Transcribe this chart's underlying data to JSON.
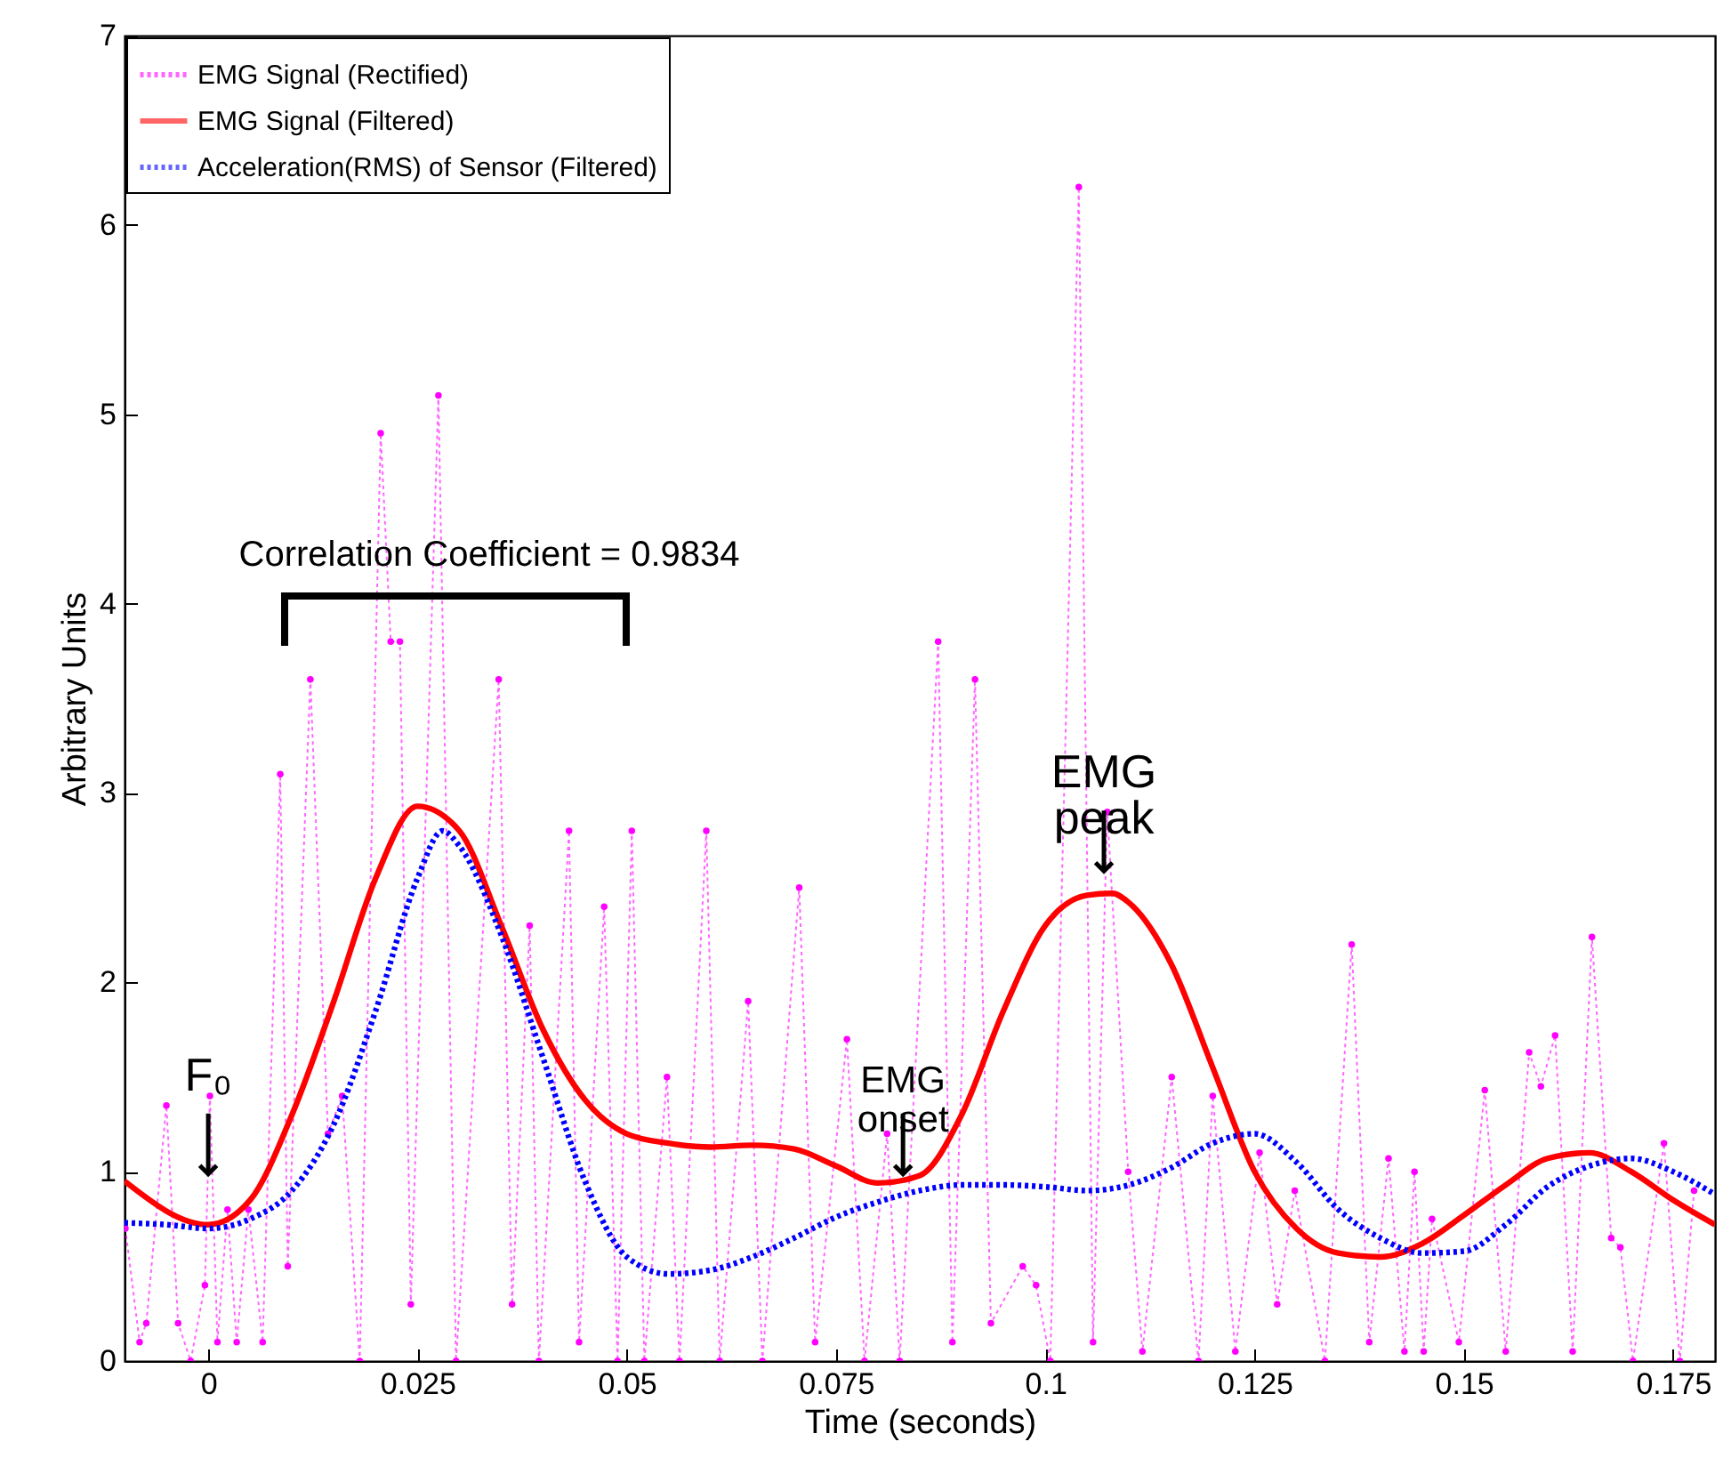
{
  "chart_data": {
    "type": "line",
    "xlabel": "Time (seconds)",
    "ylabel": "Arbitrary Units",
    "xlim": [
      -0.01,
      0.18
    ],
    "xticks": [
      0,
      0.025,
      0.05,
      0.075,
      0.1,
      0.125,
      0.15,
      0.175
    ],
    "ylim": [
      0,
      7
    ],
    "yticks": [
      0,
      1,
      2,
      3,
      4,
      5,
      6,
      7
    ],
    "grid": false,
    "legend": "top left",
    "series": [
      {
        "name": "EMG Signal (Rectified)",
        "color": "#ff00ff",
        "line_style": "dotted",
        "marker": "circle",
        "x": [
          -0.0099,
          -0.0082,
          -0.0074,
          -0.005,
          -0.0036,
          -0.0021,
          -0.0004,
          0.0002,
          0.0011,
          0.0023,
          0.0034,
          0.0048,
          0.0065,
          0.0086,
          0.0095,
          0.0122,
          0.0143,
          0.016,
          0.0181,
          0.0206,
          0.0218,
          0.0229,
          0.0242,
          0.0275,
          0.0296,
          0.0347,
          0.0363,
          0.0384,
          0.0395,
          0.0431,
          0.0443,
          0.0473,
          0.0489,
          0.0506,
          0.0521,
          0.0548,
          0.0563,
          0.0595,
          0.0611,
          0.0645,
          0.0662,
          0.0706,
          0.0725,
          0.0763,
          0.0784,
          0.0811,
          0.0826,
          0.0872,
          0.0889,
          0.0916,
          0.0935,
          0.0973,
          0.0989,
          0.1006,
          0.104,
          0.1057,
          0.1074,
          0.1099,
          0.1116,
          0.1151,
          0.1183,
          0.12,
          0.1227,
          0.1256,
          0.1277,
          0.1298,
          0.1334,
          0.1366,
          0.1387,
          0.141,
          0.1429,
          0.1441,
          0.1452,
          0.1462,
          0.1494,
          0.1525,
          0.155,
          0.1578,
          0.1592,
          0.1609,
          0.163,
          0.1653,
          0.1676,
          0.1687,
          0.1702,
          0.1739,
          0.1758,
          0.1775
        ],
        "values": [
          0.7,
          0.1,
          0.2,
          1.35,
          0.2,
          0.0,
          0.4,
          1.4,
          0.1,
          0.8,
          0.1,
          0.8,
          0.1,
          3.1,
          0.5,
          3.6,
          1.2,
          1.4,
          0.0,
          4.9,
          3.8,
          3.8,
          0.3,
          5.1,
          0.0,
          3.6,
          0.3,
          2.3,
          0.0,
          2.8,
          0.1,
          2.4,
          0.0,
          2.8,
          0.0,
          1.5,
          0.0,
          2.8,
          0.0,
          1.9,
          0.0,
          2.5,
          0.1,
          1.7,
          0.0,
          1.2,
          0.0,
          3.8,
          0.1,
          3.6,
          0.2,
          0.5,
          0.4,
          0.0,
          6.2,
          0.1,
          2.9,
          1.0,
          0.05,
          1.5,
          0.0,
          1.4,
          0.05,
          1.1,
          0.3,
          0.9,
          0.0,
          2.2,
          0.1,
          1.07,
          0.05,
          1.0,
          0.05,
          0.75,
          0.1,
          1.43,
          0.05,
          1.63,
          1.45,
          1.72,
          0.05,
          2.24,
          0.65,
          0.6,
          0.0,
          1.15,
          0.0,
          0.9
        ]
      },
      {
        "name": "EMG Signal (Filtered)",
        "color": "#ff0000",
        "line_style": "solid",
        "marker": "none",
        "x": [
          -0.01,
          0,
          0.005,
          0.01,
          0.015,
          0.02,
          0.025,
          0.03,
          0.035,
          0.04,
          0.045,
          0.05,
          0.055,
          0.06,
          0.065,
          0.07,
          0.075,
          0.08,
          0.085,
          0.09,
          0.095,
          0.1,
          0.105,
          0.108,
          0.11,
          0.115,
          0.12,
          0.125,
          0.13,
          0.135,
          0.14,
          0.145,
          0.15,
          0.155,
          0.16,
          0.165,
          0.17,
          0.175,
          0.18
        ],
        "values": [
          0.95,
          0.72,
          0.85,
          1.3,
          1.9,
          2.55,
          2.93,
          2.8,
          2.3,
          1.75,
          1.38,
          1.2,
          1.15,
          1.13,
          1.14,
          1.12,
          1.03,
          0.94,
          0.98,
          1.3,
          1.85,
          2.3,
          2.46,
          2.47,
          2.42,
          2.1,
          1.55,
          1.0,
          0.7,
          0.57,
          0.55,
          0.62,
          0.77,
          0.93,
          1.07,
          1.1,
          1.0,
          0.85,
          0.72
        ]
      },
      {
        "name": "Acceleration(RMS) of Sensor (Filtered)",
        "color": "#0000ff",
        "line_style": "dotted",
        "marker": "none",
        "x": [
          -0.01,
          -0.005,
          0,
          0.005,
          0.01,
          0.015,
          0.02,
          0.025,
          0.028,
          0.03,
          0.035,
          0.04,
          0.045,
          0.05,
          0.055,
          0.06,
          0.065,
          0.07,
          0.075,
          0.08,
          0.085,
          0.09,
          0.095,
          0.1,
          0.105,
          0.11,
          0.115,
          0.12,
          0.125,
          0.13,
          0.135,
          0.14,
          0.145,
          0.15,
          0.155,
          0.16,
          0.165,
          0.17,
          0.175,
          0.18
        ],
        "values": [
          0.73,
          0.72,
          0.7,
          0.75,
          0.9,
          1.25,
          1.85,
          2.55,
          2.8,
          2.72,
          2.25,
          1.6,
          0.95,
          0.55,
          0.46,
          0.48,
          0.55,
          0.65,
          0.76,
          0.84,
          0.9,
          0.93,
          0.93,
          0.92,
          0.9,
          0.93,
          1.02,
          1.15,
          1.2,
          1.05,
          0.8,
          0.65,
          0.57,
          0.58,
          0.72,
          0.92,
          1.03,
          1.07,
          1.0,
          0.88
        ]
      }
    ],
    "annotations": [
      "Correlation Coefficient = 0.9834",
      {
        "text": "F₀",
        "x": 0,
        "y": 0.95
      },
      {
        "text": "EMG onset",
        "x": 0.083,
        "y": 0.95
      },
      {
        "text": "EMG peak",
        "x": 0.107,
        "y": 2.55
      }
    ]
  }
}
